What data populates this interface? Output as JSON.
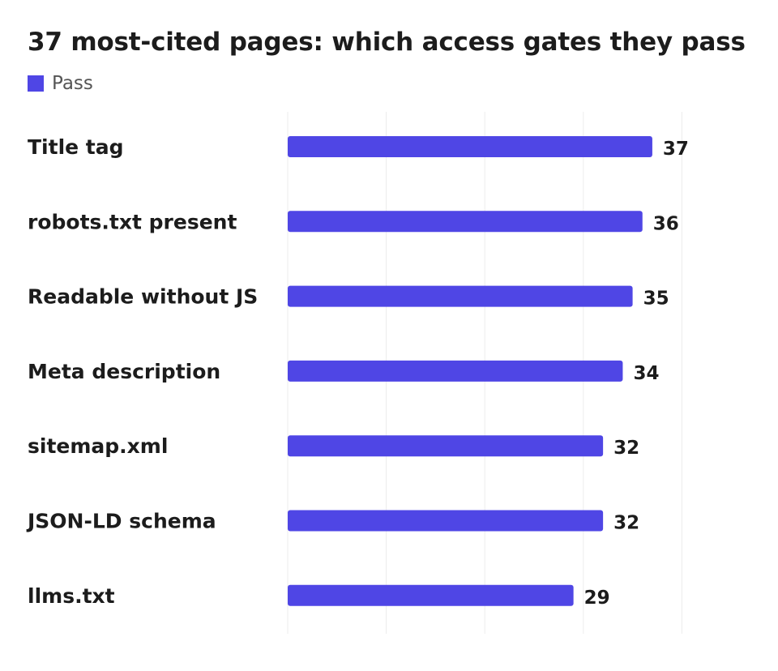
{
  "colors": {
    "bar": "#4f46e5",
    "grid": "#ececec",
    "text": "#1c1c1c",
    "legend_text": "#555555"
  },
  "legend": {
    "label": "Pass",
    "placement": "top-left"
  },
  "chart_data": {
    "type": "bar",
    "orientation": "horizontal",
    "title": "37 most-cited pages: which access gates they pass",
    "categories": [
      "Title tag",
      "robots.txt present",
      "Readable without JS",
      "Meta description",
      "sitemap.xml",
      "JSON-LD schema",
      "llms.txt"
    ],
    "series": [
      {
        "name": "Pass",
        "values": [
          37,
          36,
          35,
          34,
          32,
          32,
          29
        ]
      }
    ],
    "xlim": [
      0,
      40
    ],
    "grid": true,
    "data_labels": true,
    "xlabel": "",
    "ylabel": ""
  }
}
